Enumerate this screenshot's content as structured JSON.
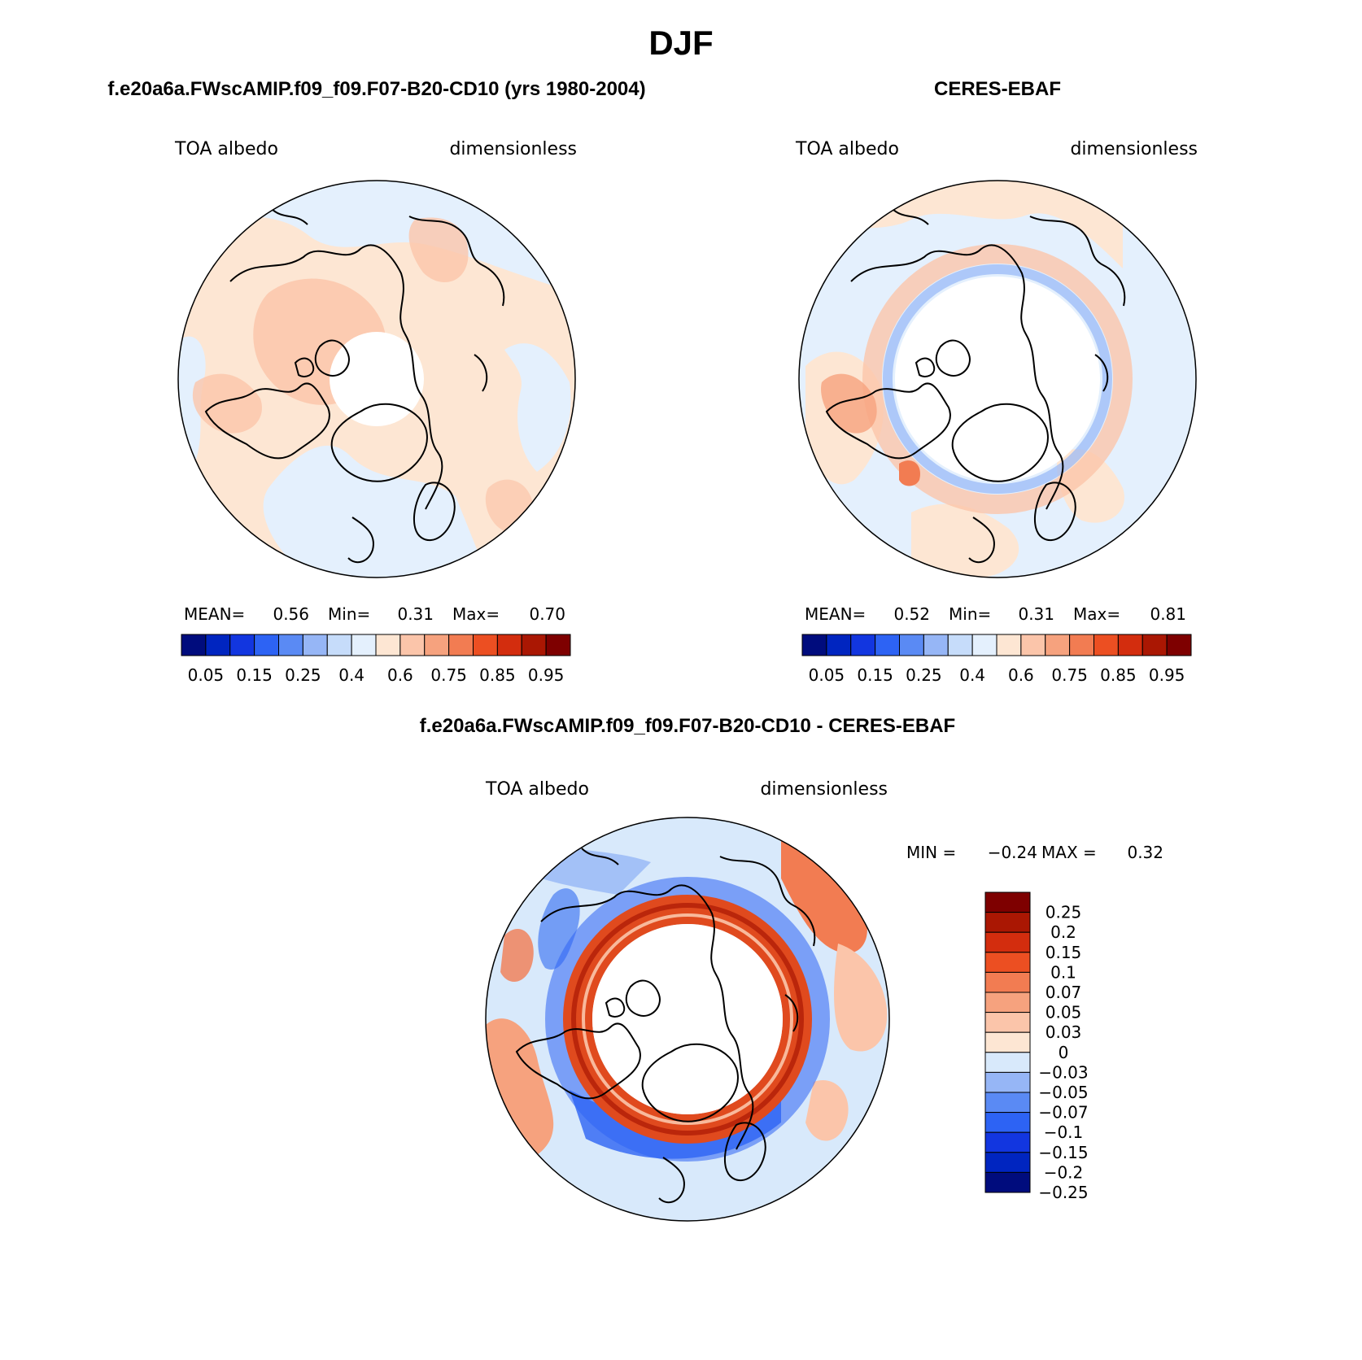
{
  "figure": {
    "season": "DJF",
    "color_scale": {
      "cbar_colors": [
        "#000c7d",
        "#0025c0",
        "#1236e0",
        "#2d63f4",
        "#5a8af4",
        "#96b6f6",
        "#c6dcfa",
        "#e4f0fd",
        "#fde6d3",
        "#fbc5aa",
        "#f6a27e",
        "#f27c52",
        "#ec4f22",
        "#d32d0e",
        "#aa1703",
        "#7e0000"
      ],
      "diff_colors": [
        "#000c7d",
        "#0025c0",
        "#1236e0",
        "#2d63f4",
        "#5a8af4",
        "#96b6f6",
        "#d8e9fb",
        "#fde6d3",
        "#fbc5aa",
        "#f6a27e",
        "#f27c52",
        "#ec4f22",
        "#d32d0e",
        "#aa1703",
        "#7e0000"
      ]
    },
    "panels": {
      "model": {
        "title": "f.e20a6a.FWscAMIP.f09_f09.F07-B20-CD10 (yrs 1980-2004)",
        "left_label": "TOA albedo",
        "right_label": "dimensionless",
        "mean_label": "MEAN=",
        "mean_value": "0.56",
        "min_label": "Min=",
        "min_value": "0.31",
        "max_label": "Max=",
        "max_value": "0.70",
        "colorbar_ticks": [
          "0.05",
          "0.15",
          "0.25",
          "0.4",
          "0.6",
          "0.75",
          "0.85",
          "0.95"
        ]
      },
      "obs": {
        "title": "CERES-EBAF",
        "left_label": "TOA albedo",
        "right_label": "dimensionless",
        "mean_label": "MEAN=",
        "mean_value": "0.52",
        "min_label": "Min=",
        "min_value": "0.31",
        "max_label": "Max=",
        "max_value": "0.81",
        "colorbar_ticks": [
          "0.05",
          "0.15",
          "0.25",
          "0.4",
          "0.6",
          "0.75",
          "0.85",
          "0.95"
        ]
      },
      "diff": {
        "title": "f.e20a6a.FWscAMIP.f09_f09.F07-B20-CD10 - CERES-EBAF",
        "left_label": "TOA albedo",
        "right_label": "dimensionless",
        "min_label": "MIN =",
        "min_value": "−0.24",
        "max_label": "MAX =",
        "max_value": "0.32",
        "colorbar_ticks": [
          "0.25",
          "0.2",
          "0.15",
          "0.1",
          "0.07",
          "0.05",
          "0.03",
          "0",
          "−0.03",
          "−0.05",
          "−0.07",
          "−0.1",
          "−0.15",
          "−0.2",
          "−0.25"
        ]
      }
    }
  }
}
